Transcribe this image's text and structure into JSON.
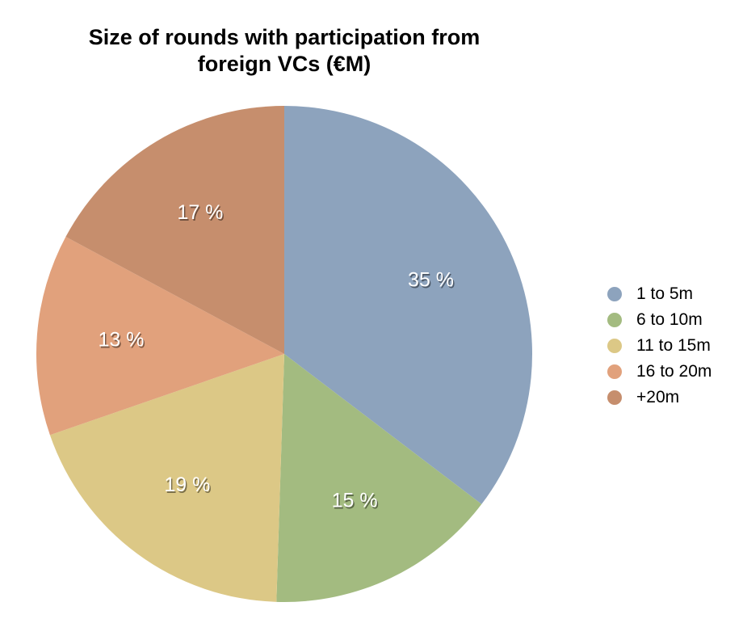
{
  "chart_data": {
    "type": "pie",
    "title_lines": [
      "Size of rounds with participation from",
      "foreign VCs (€M)"
    ],
    "legend_position": "right",
    "slices": [
      {
        "name": "1 to 5m",
        "value": 35,
        "label": "35 %",
        "color": "#8DA3BD"
      },
      {
        "name": "6 to 10m",
        "value": 15,
        "label": "15 %",
        "color": "#A3BB80"
      },
      {
        "name": "11 to 15m",
        "value": 19,
        "label": "19 %",
        "color": "#DCC886"
      },
      {
        "name": "16 to 20m",
        "value": 13,
        "label": "13 %",
        "color": "#E1A17C"
      },
      {
        "name": "+20m",
        "value": 17,
        "label": "17 %",
        "color": "#C68E6D"
      }
    ]
  }
}
